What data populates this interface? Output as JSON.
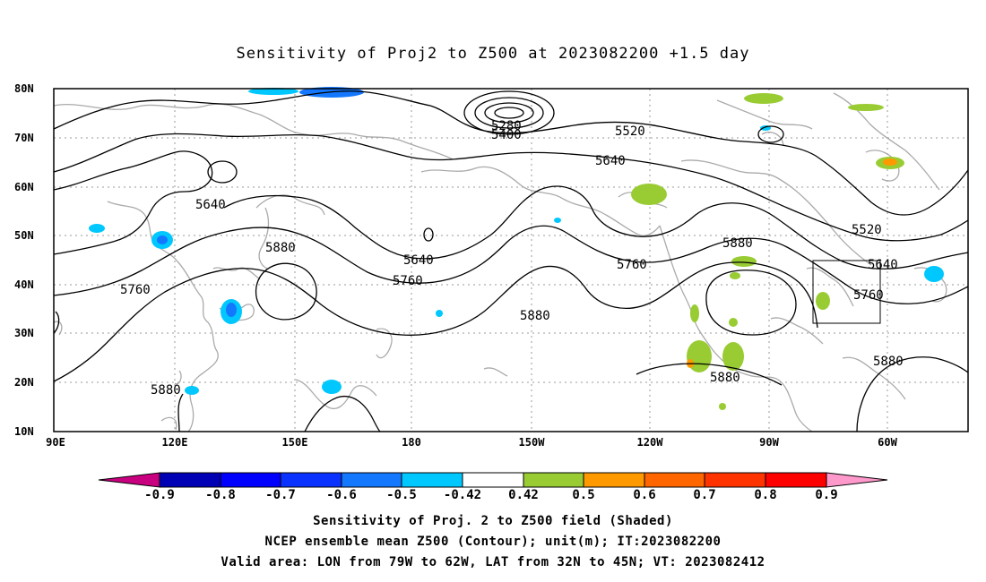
{
  "title": "Sensitivity of Proj2 to Z500 at 2023082200 +1.5 day",
  "lat_labels": [
    "80N",
    "70N",
    "60N",
    "50N",
    "40N",
    "30N",
    "20N",
    "10N"
  ],
  "lon_labels": [
    "90E",
    "120E",
    "150E",
    "180",
    "150W",
    "120W",
    "90W",
    "60W"
  ],
  "contour_labels": [
    "5280",
    "5400",
    "5520",
    "5640",
    "5640",
    "5760",
    "5880",
    "5640",
    "5760",
    "5880",
    "5880",
    "5760",
    "5880",
    "5520",
    "5640",
    "5760",
    "5880",
    "5880"
  ],
  "colorbar": {
    "labels": [
      "-0.9",
      "-0.8",
      "-0.7",
      "-0.6",
      "-0.5",
      "-0.42",
      "0.42",
      "0.5",
      "0.6",
      "0.7",
      "0.8",
      "0.9"
    ],
    "colors": [
      "#c8007f",
      "#0000b4",
      "#0000ff",
      "#0a32ff",
      "#1478ff",
      "#00c8ff",
      "#ffffff",
      "#99cc33",
      "#ff9900",
      "#ff6600",
      "#ff3300",
      "#ff0000",
      "#ff99cc"
    ]
  },
  "captions": [
    "Sensitivity of Proj. 2 to Z500 field (Shaded)",
    "NCEP ensemble mean Z500 (Contour); unit(m); IT:2023082200",
    "Valid area: LON from 79W to 62W, LAT from 32N to 45N; VT: 2023082412"
  ]
}
